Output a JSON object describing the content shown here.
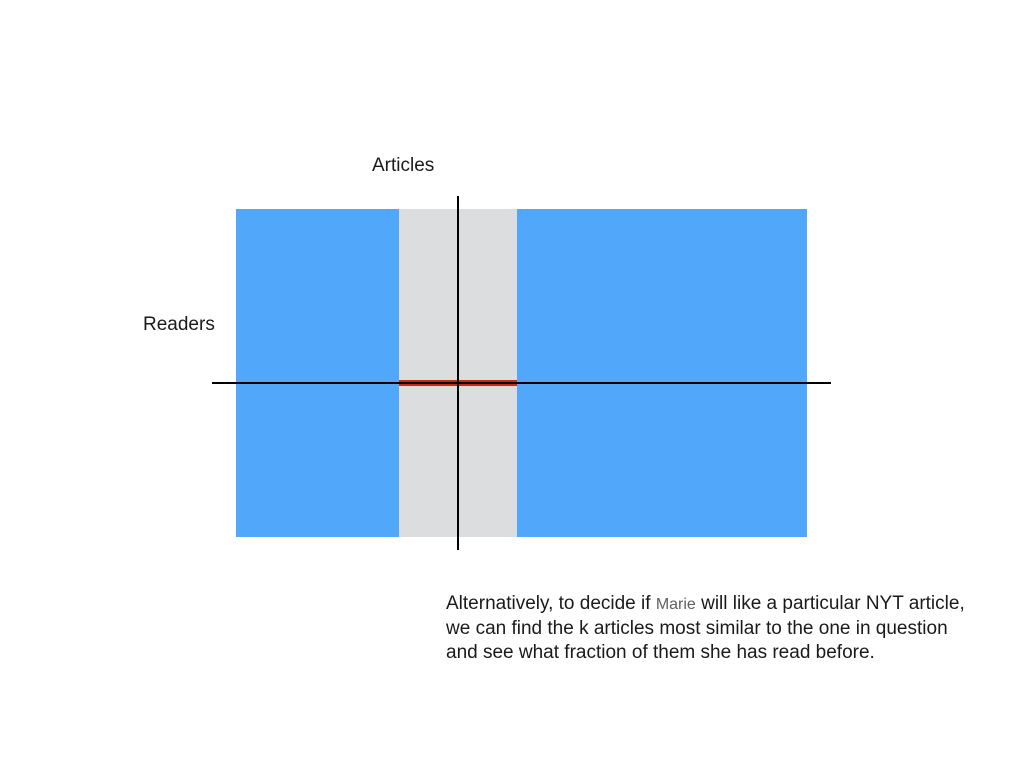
{
  "diagram": {
    "axis_labels": {
      "articles": "Articles",
      "readers": "Readers"
    },
    "colors": {
      "matrix": "#51a7f9",
      "selected_column": "#dcdddf",
      "selected_row_segment": "#c8290f",
      "axes": "#000000"
    }
  },
  "caption": {
    "before_name": "Alternatively, to decide if ",
    "name": "Marie",
    "after_name": " will like a particular NYT article, we can find the k articles most similar to the one in question and see what fraction of them she has read before."
  }
}
